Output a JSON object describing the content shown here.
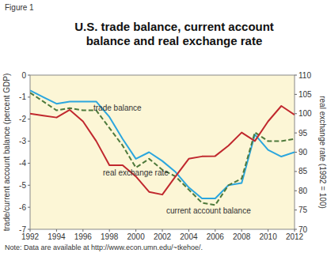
{
  "chart_data": {
    "type": "line",
    "figure_label": "Figure 1",
    "title": "U.S. trade balance, current account balance and real exchange rate",
    "ylabel": "trade/current account balance (percent GDP)",
    "y2label": "real exchange rate (1992 = 100)",
    "note": "Note: Data are available at http://www.econ.umn.edu/~tkehoe/.",
    "x": [
      1992,
      1993,
      1994,
      1995,
      1996,
      1997,
      1998,
      1999,
      2000,
      2001,
      2002,
      2003,
      2004,
      2005,
      2006,
      2007,
      2008,
      2009,
      2010,
      2011,
      2012
    ],
    "xlim": [
      1992,
      2012
    ],
    "xticks": [
      1992,
      1994,
      1996,
      1998,
      2000,
      2002,
      2004,
      2006,
      2008,
      2010,
      2012
    ],
    "ylim": [
      -7,
      0
    ],
    "yticks": [
      -7,
      -6,
      -5,
      -4,
      -3,
      -2,
      -1,
      0
    ],
    "y2lim": [
      70,
      110
    ],
    "y2ticks": [
      70,
      75,
      80,
      85,
      90,
      95,
      100,
      105,
      110
    ],
    "grid": false,
    "series": [
      {
        "name": "trade balance",
        "color": "#2ba6de",
        "line_style": "solid",
        "values": [
          -0.7,
          -1.0,
          -1.3,
          -1.2,
          -1.2,
          -1.2,
          -1.9,
          -2.9,
          -3.8,
          -3.5,
          -3.9,
          -4.4,
          -5.1,
          -5.6,
          -5.6,
          -5.0,
          -4.9,
          -2.7,
          -3.4,
          -3.7,
          -3.5
        ]
      },
      {
        "name": "current account balance",
        "color": "#4f7a3c",
        "line_style": "dashed",
        "values": [
          -0.8,
          -1.2,
          -1.6,
          -1.5,
          -1.6,
          -1.6,
          -2.4,
          -3.2,
          -4.2,
          -3.8,
          -4.3,
          -4.6,
          -5.2,
          -5.8,
          -5.9,
          -5.0,
          -4.7,
          -2.6,
          -3.0,
          -3.0,
          -2.9
        ]
      },
      {
        "name": "real exchange rate",
        "color": "#c0282e",
        "line_style": "solid",
        "axis": "y2",
        "values": [
          100,
          99.5,
          99,
          101,
          98,
          92.9,
          86.6,
          86.6,
          83.7,
          79.7,
          79,
          83.7,
          88.3,
          88.9,
          89,
          91.7,
          95.1,
          92.9,
          98,
          102,
          99.7
        ]
      }
    ]
  }
}
